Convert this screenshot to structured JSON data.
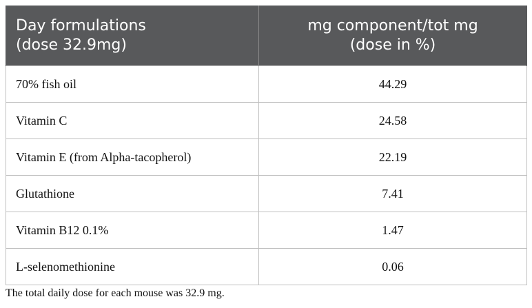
{
  "table": {
    "headers": [
      {
        "line1": "Day formulations",
        "line2": "(dose 32.9mg)"
      },
      {
        "line1": "mg component/tot mg",
        "line2": "(dose in %)"
      }
    ],
    "rows": [
      {
        "component": "70% fish oil",
        "value": "44.29"
      },
      {
        "component": "Vitamin C",
        "value": "24.58"
      },
      {
        "component": "Vitamin E (from Alpha-tacopherol)",
        "value": "22.19"
      },
      {
        "component": "Glutathione",
        "value": "7.41"
      },
      {
        "component": "Vitamin B12 0.1%",
        "value": "1.47"
      },
      {
        "component": "L-selenomethionine",
        "value": "0.06"
      }
    ],
    "header_bg_color": "#58595b"
  },
  "footnote": "The total daily dose for each mouse was 32.9 mg."
}
